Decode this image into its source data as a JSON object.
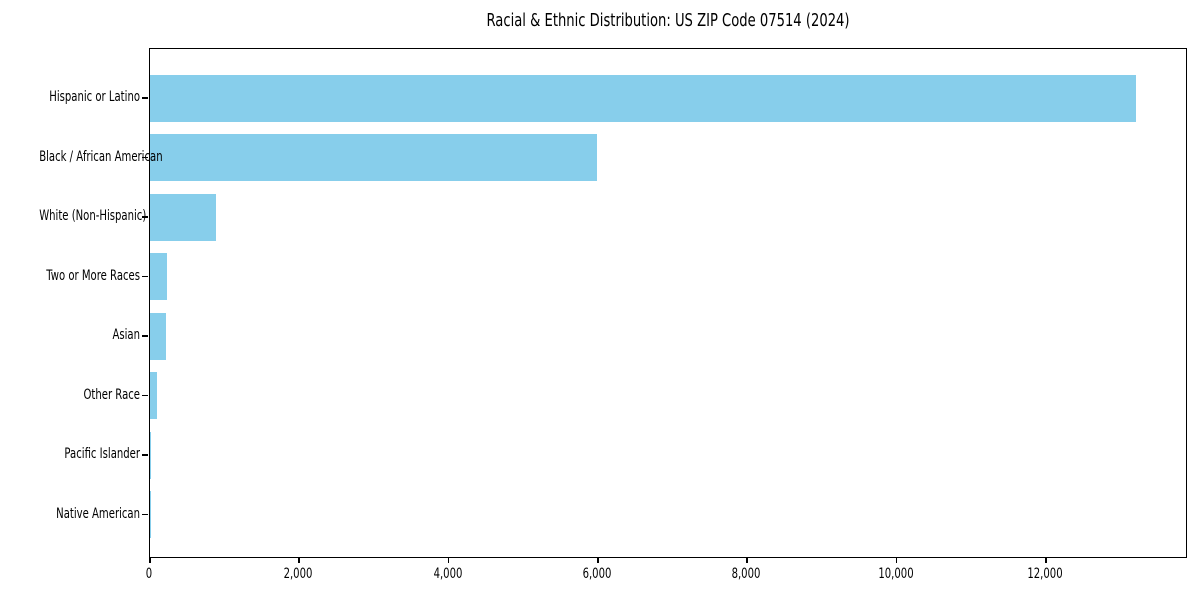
{
  "chart_data": {
    "type": "bar",
    "orientation": "horizontal",
    "title": "Racial & Ethnic Distribution: US ZIP Code 07514 (2024)",
    "categories": [
      "Hispanic or Latino",
      "Black / African American",
      "White (Non-Hispanic)",
      "Two or More Races",
      "Asian",
      "Other Race",
      "Pacific Islander",
      "Native American"
    ],
    "values": [
      13200,
      5990,
      880,
      225,
      220,
      90,
      12,
      4
    ],
    "xlabel": "",
    "ylabel": "",
    "xlim": [
      0,
      13900
    ],
    "xticks": [
      0,
      2000,
      4000,
      6000,
      8000,
      10000,
      12000
    ],
    "xtick_labels": [
      "0",
      "2,000",
      "4,000",
      "6,000",
      "8,000",
      "10,000",
      "12,000"
    ],
    "bar_color": "#87CEEB",
    "axis_color": "#000000",
    "text_color": "#000000",
    "grid": false,
    "legend": null
  }
}
